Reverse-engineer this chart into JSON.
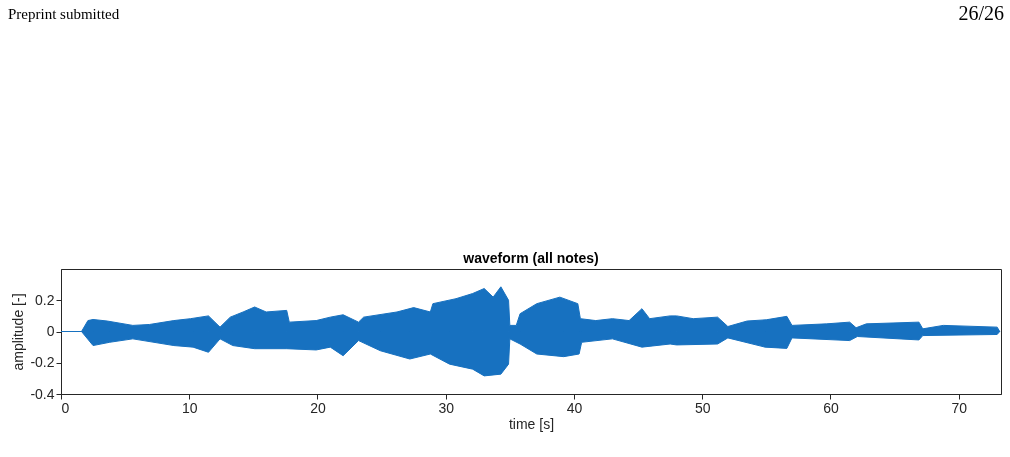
{
  "chart_data": {
    "type": "area",
    "title": "waveform (all notes)",
    "xlabel": "time [s]",
    "ylabel": "amplitude [-]",
    "annotations": [
      "Preprint submitted",
      "26/26"
    ],
    "xlim": [
      0,
      73.3
    ],
    "xticks": [
      0,
      10,
      20,
      30,
      40,
      50,
      60,
      70
    ],
    "ylim": [
      -0.4,
      0.4
    ],
    "yticks": [
      -0.4,
      -0.2,
      0,
      0.2
    ],
    "series": [
      {
        "color": "#1771c0",
        "x": [
          0,
          1.6,
          2.1,
          2.5,
          3.6,
          5.6,
          6.9,
          8.8,
          10.1,
          11.5,
          12.4,
          13.2,
          14.2,
          15.1,
          16.0,
          17.6,
          17.8,
          19.9,
          21.0,
          22.0,
          23.2,
          23.6,
          26.2,
          27.5,
          28.8,
          29.0,
          30.8,
          32.1,
          33.0,
          33.7,
          34.3,
          34.9,
          35.0,
          35.5,
          35.8,
          37.1,
          38.9,
          40.3,
          40.5,
          41.7,
          43.0,
          44.3,
          45.3,
          45.9,
          47.5,
          48.0,
          49.3,
          51.2,
          52.0,
          53.5,
          55.0,
          56.6,
          57.0,
          59.7,
          61.5,
          62.0,
          62.8,
          66.9,
          67.2,
          68.8,
          73.0,
          73.2
        ],
        "values": [
          0,
          0,
          0.07,
          0.077,
          0.067,
          0.039,
          0.045,
          0.07,
          0.082,
          0.1,
          0.028,
          0.092,
          0.125,
          0.157,
          0.125,
          0.135,
          0.06,
          0.07,
          0.092,
          0.107,
          0.06,
          0.092,
          0.125,
          0.153,
          0.125,
          0.178,
          0.21,
          0.243,
          0.275,
          0.22,
          0.286,
          0.2,
          0.039,
          0.039,
          0.114,
          0.178,
          0.22,
          0.178,
          0.082,
          0.07,
          0.082,
          0.07,
          0.146,
          0.082,
          0.1,
          0.1,
          0.082,
          0.092,
          0.032,
          0.067,
          0.075,
          0.097,
          0.039,
          0.049,
          0.06,
          0.024,
          0.049,
          0.06,
          0.017,
          0.039,
          0.028,
          0
        ]
      },
      {
        "color": "#1771c0",
        "x": [
          0,
          1.6,
          2.5,
          3.8,
          5.6,
          8.8,
          10.3,
          11.5,
          12.4,
          13.4,
          15.1,
          17.6,
          19.9,
          21.0,
          22.0,
          23.2,
          24.9,
          27.2,
          28.8,
          30.3,
          32.1,
          33.0,
          34.3,
          34.9,
          35.0,
          35.8,
          37.1,
          39.2,
          40.4,
          40.6,
          43.0,
          45.3,
          47.5,
          48.0,
          51.2,
          52.0,
          54.9,
          56.6,
          57.0,
          61.5,
          62.1,
          66.9,
          67.2,
          73.0,
          73.2
        ],
        "values": [
          0,
          0,
          -0.09,
          -0.069,
          -0.047,
          -0.09,
          -0.1,
          -0.133,
          -0.047,
          -0.09,
          -0.11,
          -0.11,
          -0.118,
          -0.1,
          -0.155,
          -0.058,
          -0.123,
          -0.176,
          -0.144,
          -0.209,
          -0.241,
          -0.284,
          -0.273,
          -0.209,
          -0.047,
          -0.08,
          -0.144,
          -0.161,
          -0.144,
          -0.069,
          -0.047,
          -0.1,
          -0.08,
          -0.086,
          -0.08,
          -0.041,
          -0.1,
          -0.108,
          -0.041,
          -0.058,
          -0.032,
          -0.054,
          -0.026,
          -0.019,
          0
        ]
      }
    ]
  }
}
